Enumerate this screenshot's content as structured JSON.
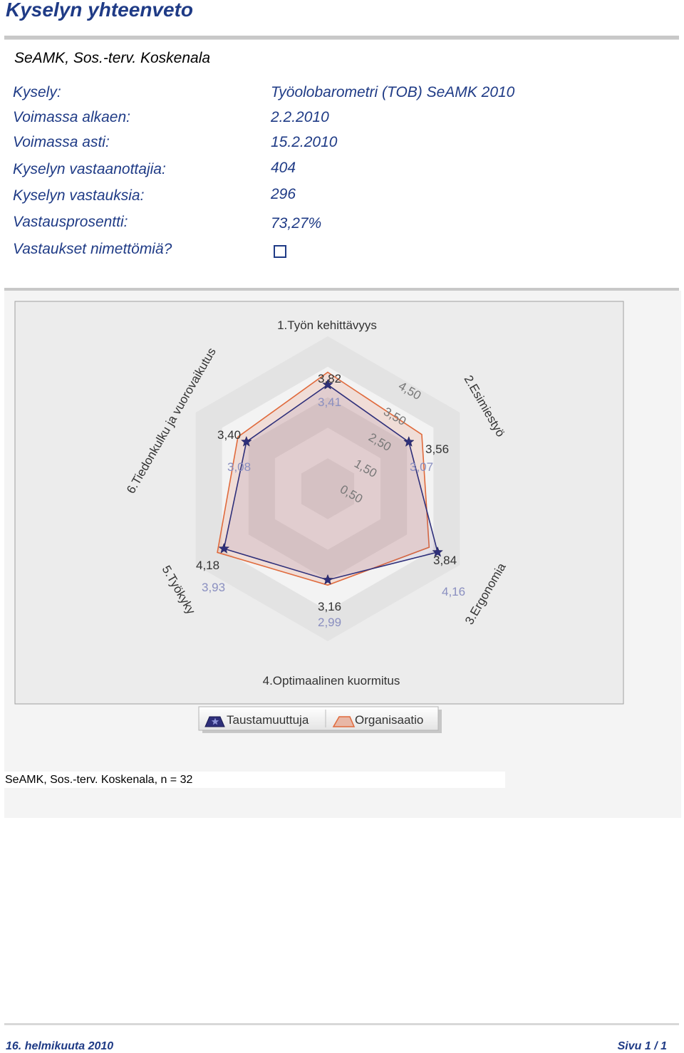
{
  "header": {
    "title": "Kyselyn yhteenveto",
    "subtitle": "SeAMK, Sos.-terv. Koskenala"
  },
  "info": [
    {
      "label": "Kysely:",
      "value": "Työolobarometri (TOB) SeAMK 2010"
    },
    {
      "label": "Voimassa alkaen:",
      "value": "2.2.2010"
    },
    {
      "label": "Voimassa asti:",
      "value": "15.2.2010"
    },
    {
      "label": "Kyselyn vastaanottajia:",
      "value": "404"
    },
    {
      "label": "Kyselyn vastauksia:",
      "value": "296"
    },
    {
      "label": "Vastausprosentti:",
      "value": "73,27%"
    },
    {
      "label": "Vastaukset nimettömiä?",
      "value": ""
    }
  ],
  "anonymous_checked": false,
  "chart_data": {
    "type": "radar",
    "axes": [
      "1.Työn kehittävyys",
      "2.Esimiestyö",
      "3.Ergonomia",
      "4.Optimaalinen kuormitus",
      "5.Työkyky",
      "6.Tiedonkulku ja vuorovaikutus"
    ],
    "scale_ticks": [
      "0,50",
      "1,50",
      "2,50",
      "3,50",
      "4,50"
    ],
    "scale_max": 5,
    "series": [
      {
        "name": "Taustamuuttuja",
        "values": [
          3.41,
          3.07,
          4.16,
          2.99,
          3.93,
          3.08
        ],
        "labels": [
          "3,41",
          "3,07",
          "4,16",
          "2,99",
          "3,93",
          "3,08"
        ],
        "color": "#2e2f7a"
      },
      {
        "name": "Organisaatio",
        "values": [
          3.82,
          3.56,
          3.84,
          3.16,
          4.18,
          3.4
        ],
        "labels": [
          "3,82",
          "3,56",
          "3,84",
          "3,16",
          "4,18",
          "3,40"
        ],
        "color": "#e06a3c"
      }
    ],
    "caption": "SeAMK, Sos.-terv. Koskenala, n = 32"
  },
  "footer": {
    "date": "16. helmikuuta 2010",
    "page": "Sivu 1 / 1"
  }
}
